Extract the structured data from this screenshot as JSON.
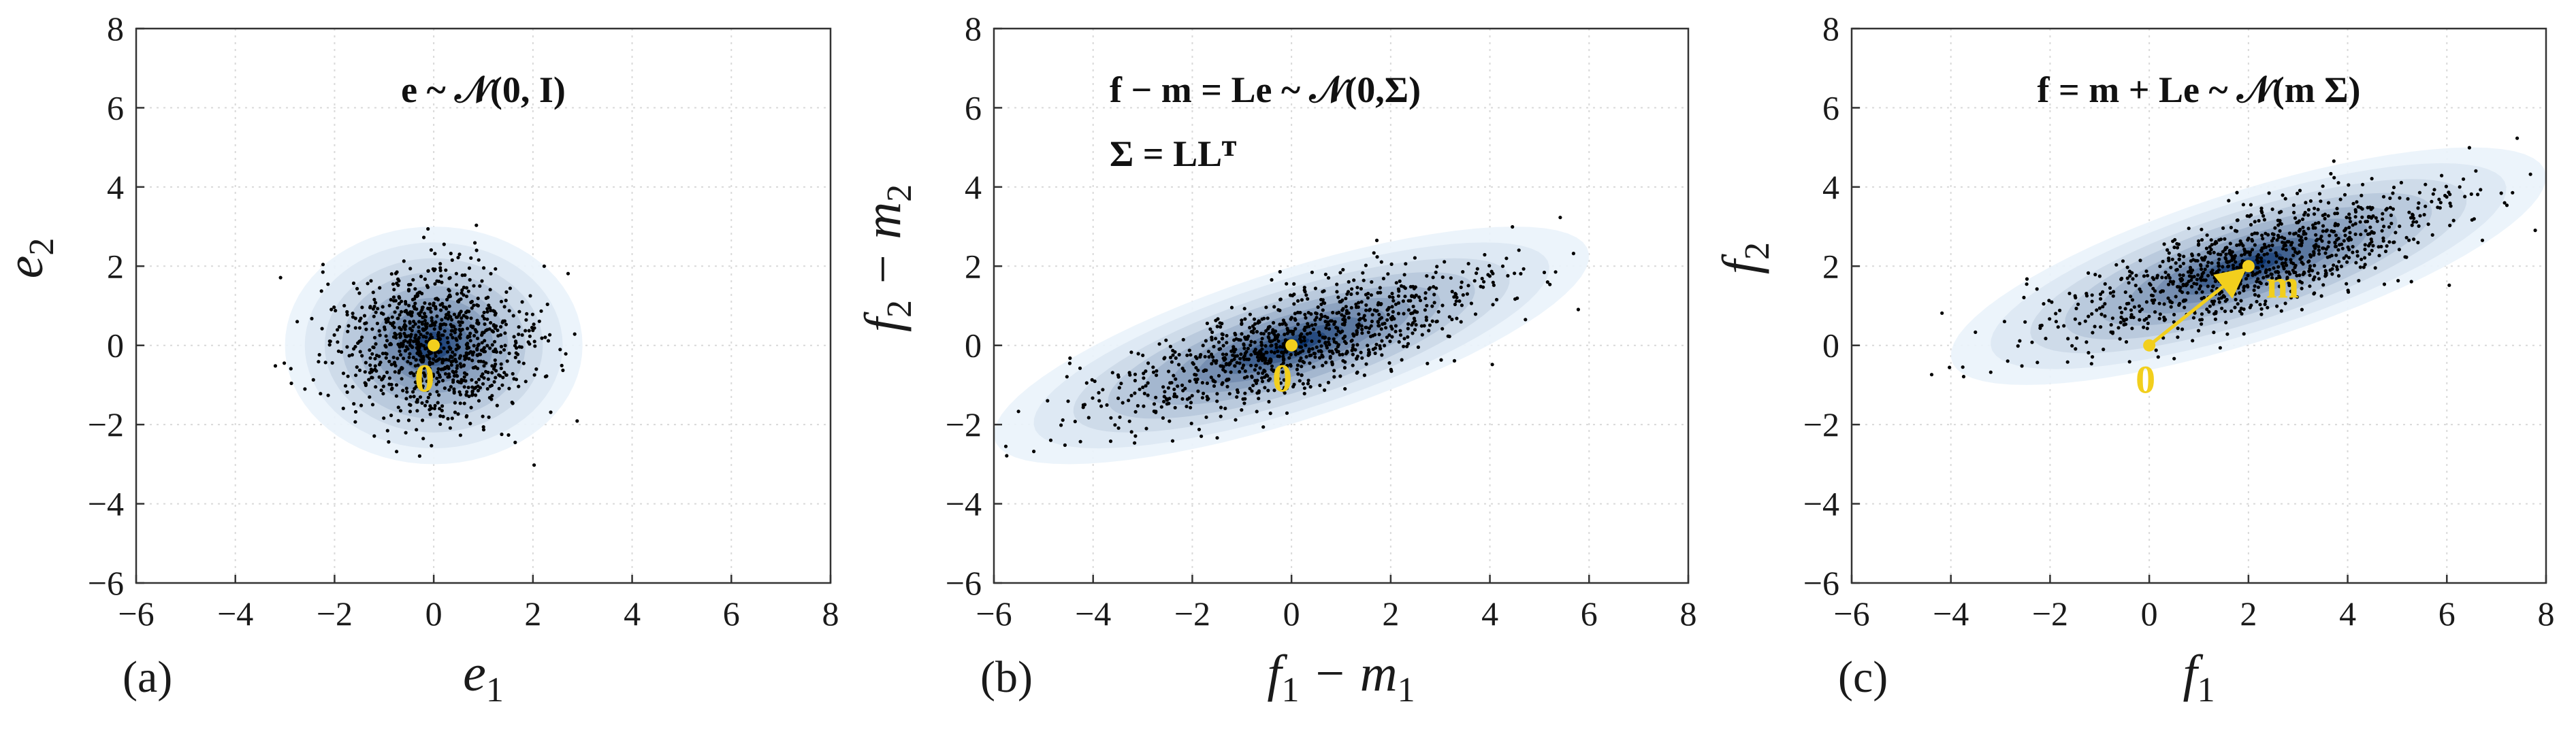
{
  "chart_data": [
    {
      "type": "scatter",
      "panel_label": "(a)",
      "xlabel": "e",
      "xlabel_sub": "1",
      "ylabel": "e",
      "ylabel_sub": "2",
      "xlim": [
        -6,
        8
      ],
      "ylim": [
        -6,
        8
      ],
      "xticks": [
        -6,
        -4,
        -2,
        0,
        2,
        4,
        6,
        8
      ],
      "yticks": [
        -6,
        -4,
        -2,
        0,
        2,
        4,
        6,
        8
      ],
      "grid": true,
      "annotation_lines": [
        "e ~ 𝒩(0, I)"
      ],
      "mean": [
        0,
        0
      ],
      "cov": [
        [
          1,
          0
        ],
        [
          0,
          1
        ]
      ],
      "num_points": 1000,
      "markers": [
        {
          "label": "0",
          "x": 0,
          "y": 0,
          "color": "#f2cf1d"
        }
      ],
      "arrow": null
    },
    {
      "type": "scatter",
      "panel_label": "(b)",
      "xlabel": "f",
      "xlabel_sub": "1",
      "xlabel_rest": " − m",
      "xlabel_rest_sub": "1",
      "ylabel": "f",
      "ylabel_sub": "2",
      "ylabel_rest": " − m",
      "ylabel_rest_sub": "2",
      "xlim": [
        -6,
        8
      ],
      "ylim": [
        -6,
        8
      ],
      "xticks": [
        -6,
        -4,
        -2,
        0,
        2,
        4,
        6,
        8
      ],
      "yticks": [
        -6,
        -4,
        -2,
        0,
        2,
        4,
        6,
        8
      ],
      "grid": true,
      "annotation_lines": [
        "f − m = Le ~ 𝒩(0,Σ)",
        "Σ = LLᵀ"
      ],
      "mean": [
        0,
        0
      ],
      "cov": [
        [
          4,
          1.5
        ],
        [
          1.5,
          1
        ]
      ],
      "num_points": 1000,
      "markers": [
        {
          "label": "0",
          "x": 0,
          "y": 0,
          "color": "#f2cf1d"
        }
      ],
      "arrow": null
    },
    {
      "type": "scatter",
      "panel_label": "(c)",
      "xlabel": "f",
      "xlabel_sub": "1",
      "ylabel": "f",
      "ylabel_sub": "2",
      "xlim": [
        -6,
        8
      ],
      "ylim": [
        -6,
        8
      ],
      "xticks": [
        -6,
        -4,
        -2,
        0,
        2,
        4,
        6,
        8
      ],
      "yticks": [
        -6,
        -4,
        -2,
        0,
        2,
        4,
        6,
        8
      ],
      "grid": true,
      "annotation_lines": [
        "f = m + Le ~ 𝒩(m Σ)"
      ],
      "mean": [
        2,
        2
      ],
      "cov": [
        [
          4,
          1.5
        ],
        [
          1.5,
          1
        ]
      ],
      "num_points": 1000,
      "markers": [
        {
          "label": "0",
          "x": 0,
          "y": 0,
          "color": "#f2cf1d"
        },
        {
          "label": "m",
          "x": 2,
          "y": 2,
          "color": "#f2cf1d"
        }
      ],
      "arrow": {
        "from": [
          0,
          0
        ],
        "to": [
          2,
          2
        ],
        "color": "#f2cf1d"
      }
    }
  ],
  "colors": {
    "density_light": "#eaf3fb",
    "density_dark": "#08306b",
    "points": "#000000",
    "accent": "#f2cf1d",
    "grid": "#d9d9d9"
  }
}
